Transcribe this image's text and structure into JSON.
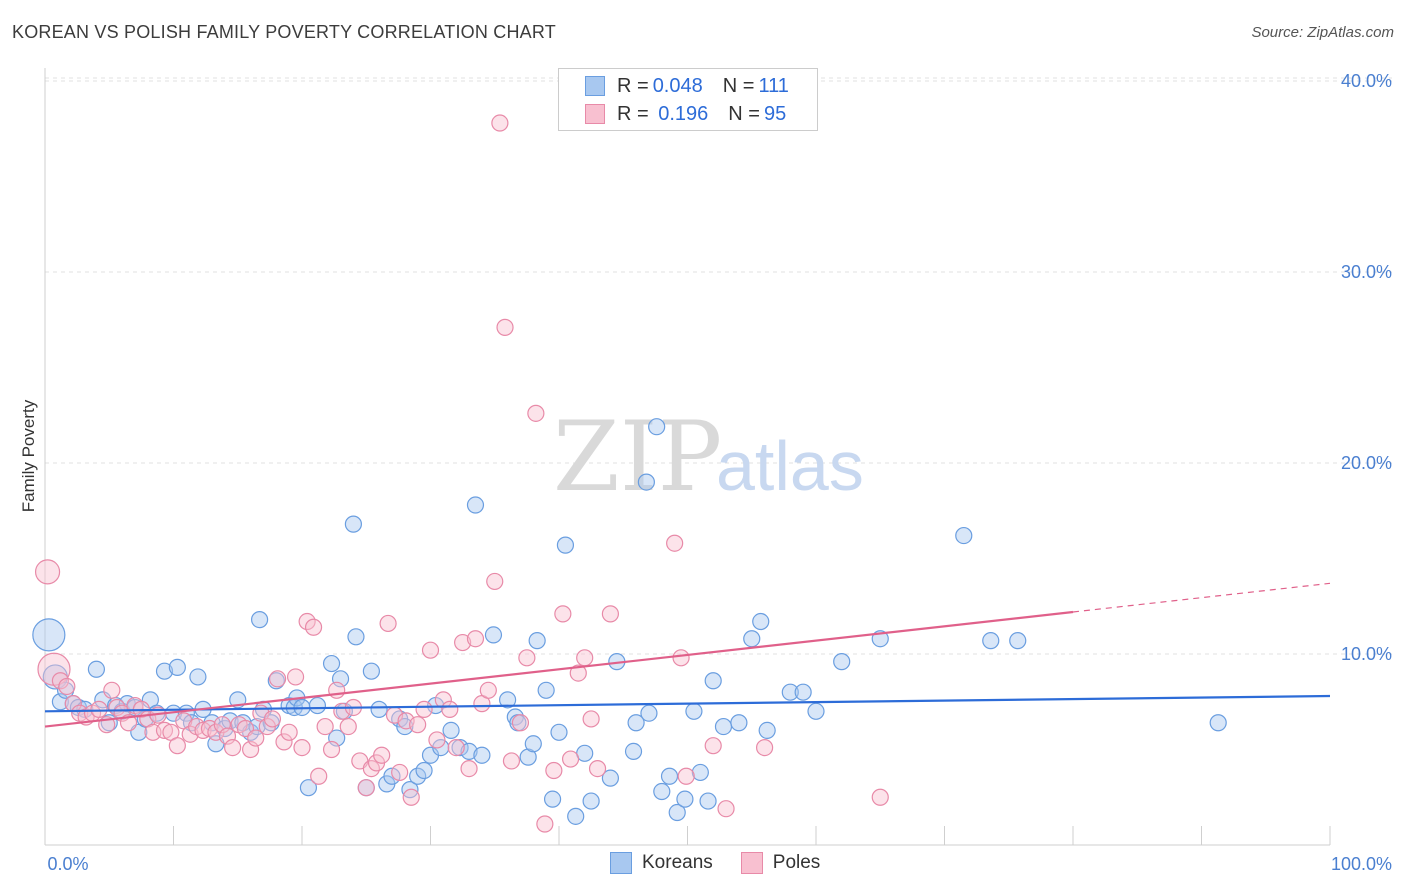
{
  "title": "KOREAN VS POLISH FAMILY POVERTY CORRELATION CHART",
  "source": "Source: ZipAtlas.com",
  "watermark": {
    "zip": "ZIP",
    "atlas": "atlas"
  },
  "legend": {
    "rows": [
      {
        "r_label": "R = ",
        "r_value": "0.048",
        "n_label": "N = ",
        "n_value": "111",
        "color": "#a8c8f0",
        "border": "#6a9ee0"
      },
      {
        "r_label": "R = ",
        "r_value": " 0.196",
        "n_label": "N = ",
        "n_value": "95",
        "color": "#f8c0d0",
        "border": "#e88aa8"
      }
    ]
  },
  "bottom_legend": [
    {
      "label": "Koreans",
      "color": "#a8c8f0",
      "border": "#6a9ee0"
    },
    {
      "label": "Poles",
      "color": "#f8c0d0",
      "border": "#e88aa8"
    }
  ],
  "chart_data": {
    "type": "scatter",
    "title": "KOREAN VS POLISH FAMILY POVERTY CORRELATION CHART",
    "xlabel": "",
    "ylabel": "Family Poverty",
    "xlim": [
      0,
      100
    ],
    "ylim": [
      0,
      42
    ],
    "x_tick_labels": [
      "0.0%",
      "100.0%"
    ],
    "y_ticks": [
      10,
      20,
      30,
      40
    ],
    "y_tick_labels": [
      "10.0%",
      "20.0%",
      "30.0%",
      "40.0%"
    ],
    "grid": true,
    "legend_position": "top-center",
    "series": [
      {
        "name": "Koreans",
        "color": "#6a9ee0",
        "fill": "#a8c8f0",
        "trend": {
          "x": [
            0,
            100
          ],
          "y": [
            7.0,
            7.8
          ]
        },
        "points": [
          [
            0.3,
            11,
            "L"
          ],
          [
            0.8,
            8.8,
            "M"
          ],
          [
            1.2,
            7.5
          ],
          [
            1.6,
            8.1
          ],
          [
            2.2,
            7.4
          ],
          [
            2.6,
            7.2
          ],
          [
            3.1,
            7.1
          ],
          [
            4,
            9.2
          ],
          [
            4.5,
            7.6
          ],
          [
            5,
            6.4
          ],
          [
            5.5,
            7.3
          ],
          [
            6,
            7.0
          ],
          [
            6.4,
            7.4
          ],
          [
            7,
            7.2
          ],
          [
            7.3,
            5.9
          ],
          [
            7.8,
            6.6
          ],
          [
            8.2,
            7.6
          ],
          [
            8.7,
            6.9
          ],
          [
            9.3,
            9.1
          ],
          [
            10,
            6.9
          ],
          [
            10.3,
            9.3
          ],
          [
            11,
            6.9
          ],
          [
            11.4,
            6.4
          ],
          [
            11.9,
            8.8
          ],
          [
            12.3,
            7.1
          ],
          [
            13,
            6.4
          ],
          [
            13.3,
            5.3
          ],
          [
            14,
            6.1
          ],
          [
            14.4,
            6.5
          ],
          [
            15,
            7.6
          ],
          [
            15.4,
            6.4
          ],
          [
            16,
            5.9
          ],
          [
            16.5,
            6.2
          ],
          [
            16.7,
            11.8
          ],
          [
            17,
            7.1
          ],
          [
            17.6,
            6.4
          ],
          [
            18,
            8.6
          ],
          [
            19,
            7.3
          ],
          [
            19.4,
            7.2
          ],
          [
            19.6,
            7.7
          ],
          [
            20,
            7.2
          ],
          [
            20.5,
            3.0
          ],
          [
            21.2,
            7.3
          ],
          [
            22.3,
            9.5
          ],
          [
            22.7,
            5.6
          ],
          [
            23,
            8.7
          ],
          [
            23.3,
            7.0
          ],
          [
            24,
            16.8
          ],
          [
            24.2,
            10.9
          ],
          [
            25,
            3.0
          ],
          [
            25.4,
            9.1
          ],
          [
            26,
            7.1
          ],
          [
            26.6,
            3.2
          ],
          [
            27,
            3.6
          ],
          [
            27.6,
            6.6
          ],
          [
            28,
            6.2
          ],
          [
            28.4,
            2.9
          ],
          [
            29,
            3.6
          ],
          [
            29.5,
            3.9
          ],
          [
            30,
            4.7
          ],
          [
            30.4,
            7.3
          ],
          [
            30.8,
            5.1
          ],
          [
            31.6,
            6.0
          ],
          [
            32.3,
            5.1
          ],
          [
            33,
            4.9
          ],
          [
            33.5,
            17.8
          ],
          [
            34,
            4.7
          ],
          [
            34.9,
            11.0
          ],
          [
            36,
            7.6
          ],
          [
            36.6,
            6.7
          ],
          [
            36.8,
            6.4
          ],
          [
            37.6,
            4.6
          ],
          [
            38,
            5.3
          ],
          [
            38.3,
            10.7
          ],
          [
            39,
            8.1
          ],
          [
            39.5,
            2.4
          ],
          [
            40,
            5.9
          ],
          [
            40.5,
            15.7
          ],
          [
            41.3,
            1.5
          ],
          [
            42,
            4.8
          ],
          [
            42.5,
            2.3
          ],
          [
            44,
            3.5
          ],
          [
            44.5,
            9.6
          ],
          [
            45.8,
            4.9
          ],
          [
            46,
            6.4
          ],
          [
            46.8,
            19.0
          ],
          [
            47,
            6.9
          ],
          [
            47.6,
            21.9
          ],
          [
            48,
            2.8
          ],
          [
            48.6,
            3.6
          ],
          [
            49.2,
            1.7
          ],
          [
            49.8,
            2.4
          ],
          [
            50.5,
            7.0
          ],
          [
            51,
            3.8
          ],
          [
            51.6,
            2.3
          ],
          [
            52,
            8.6
          ],
          [
            52.8,
            6.2
          ],
          [
            54,
            6.4
          ],
          [
            55,
            10.8
          ],
          [
            55.7,
            11.7
          ],
          [
            56.2,
            6.0
          ],
          [
            58,
            8.0
          ],
          [
            59,
            8.0
          ],
          [
            60,
            7.0
          ],
          [
            62,
            9.6
          ],
          [
            65,
            10.8
          ],
          [
            71.5,
            16.2
          ],
          [
            73.6,
            10.7
          ],
          [
            75.7,
            10.7
          ],
          [
            91.3,
            6.4
          ]
        ]
      },
      {
        "name": "Poles",
        "color": "#e88aa8",
        "fill": "#f8c0d0",
        "trend": {
          "x": [
            0,
            80
          ],
          "y": [
            6.2,
            12.2
          ]
        },
        "trend_extension": {
          "x": [
            80,
            100
          ],
          "y": [
            12.2,
            13.7
          ]
        },
        "points": [
          [
            0.2,
            14.3,
            "M"
          ],
          [
            0.7,
            9.2,
            "L"
          ],
          [
            1.2,
            8.6
          ],
          [
            1.7,
            8.3
          ],
          [
            2.2,
            7.4
          ],
          [
            2.7,
            6.9
          ],
          [
            3.2,
            6.7
          ],
          [
            3.7,
            6.9
          ],
          [
            4.2,
            7.1
          ],
          [
            4.8,
            6.3
          ],
          [
            5.2,
            8.1
          ],
          [
            5.6,
            7.2
          ],
          [
            6,
            6.9
          ],
          [
            6.5,
            6.4
          ],
          [
            7,
            7.3
          ],
          [
            7.5,
            7.1
          ],
          [
            8,
            6.6
          ],
          [
            8.4,
            5.9
          ],
          [
            8.8,
            6.8
          ],
          [
            9.3,
            6.0
          ],
          [
            9.8,
            5.9
          ],
          [
            10.3,
            5.2
          ],
          [
            10.8,
            6.5
          ],
          [
            11.3,
            5.8
          ],
          [
            11.8,
            6.2
          ],
          [
            12.3,
            6.0
          ],
          [
            12.8,
            6.1
          ],
          [
            13.3,
            5.9
          ],
          [
            13.8,
            6.3
          ],
          [
            14.2,
            5.7
          ],
          [
            14.6,
            5.1
          ],
          [
            15.1,
            6.3
          ],
          [
            15.6,
            6.1
          ],
          [
            16,
            5.0
          ],
          [
            16.4,
            5.6
          ],
          [
            16.8,
            6.9
          ],
          [
            17.3,
            6.2
          ],
          [
            17.7,
            6.6
          ],
          [
            18.1,
            8.7
          ],
          [
            18.6,
            5.4
          ],
          [
            19,
            5.9
          ],
          [
            19.5,
            8.8
          ],
          [
            20,
            5.1
          ],
          [
            20.4,
            11.7
          ],
          [
            20.9,
            11.4
          ],
          [
            21.3,
            3.6
          ],
          [
            21.8,
            6.2
          ],
          [
            22.3,
            5.0
          ],
          [
            22.7,
            8.1
          ],
          [
            23.1,
            7.0
          ],
          [
            23.6,
            6.2
          ],
          [
            24,
            7.2
          ],
          [
            24.5,
            4.4
          ],
          [
            25,
            3.0
          ],
          [
            25.4,
            4.0
          ],
          [
            25.8,
            4.3
          ],
          [
            26.2,
            4.7
          ],
          [
            26.7,
            11.6
          ],
          [
            27.2,
            6.8
          ],
          [
            27.6,
            3.8
          ],
          [
            28.1,
            6.5
          ],
          [
            28.5,
            2.5
          ],
          [
            29,
            6.3
          ],
          [
            29.5,
            7.1
          ],
          [
            30,
            10.2
          ],
          [
            30.5,
            5.5
          ],
          [
            31,
            7.6
          ],
          [
            31.5,
            7.1
          ],
          [
            32,
            5.1
          ],
          [
            32.5,
            10.6
          ],
          [
            33,
            4.0
          ],
          [
            33.5,
            10.8
          ],
          [
            34,
            7.4
          ],
          [
            34.5,
            8.1
          ],
          [
            35,
            13.8
          ],
          [
            35.4,
            37.8
          ],
          [
            35.8,
            27.1
          ],
          [
            36.3,
            4.4
          ],
          [
            37,
            6.4
          ],
          [
            37.5,
            9.8
          ],
          [
            38.2,
            22.6
          ],
          [
            38.9,
            1.1
          ],
          [
            39.6,
            3.9
          ],
          [
            40.3,
            12.1
          ],
          [
            40.9,
            4.5
          ],
          [
            41.5,
            9.0
          ],
          [
            42,
            9.8
          ],
          [
            42.5,
            6.6
          ],
          [
            43,
            4.0
          ],
          [
            44,
            12.1
          ],
          [
            49,
            15.8
          ],
          [
            49.5,
            9.8
          ],
          [
            49.9,
            3.6
          ],
          [
            52,
            5.2
          ],
          [
            53,
            1.9
          ],
          [
            56,
            5.1
          ],
          [
            65,
            2.5
          ]
        ]
      }
    ]
  }
}
